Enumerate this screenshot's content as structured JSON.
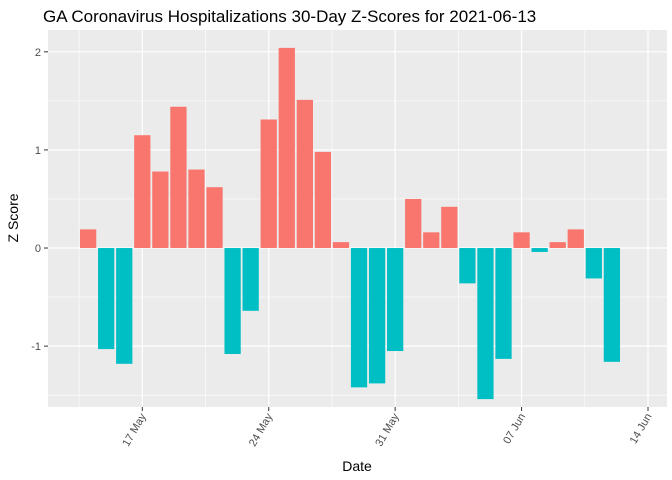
{
  "chart_data": {
    "type": "bar",
    "title": "GA Coronavirus Hospitalizations 30-Day Z-Scores for 2021-06-13",
    "xlabel": "Date",
    "ylabel": "Z Score",
    "x_type": "date",
    "xlim": [
      "2021-05-12",
      "2021-06-14"
    ],
    "ylim": [
      -1.6,
      2.1
    ],
    "grid": true,
    "legend": "none",
    "x_ticks": [
      {
        "date": "2021-05-17",
        "label": "17 May"
      },
      {
        "date": "2021-05-24",
        "label": "24 May"
      },
      {
        "date": "2021-05-31",
        "label": "31 May"
      },
      {
        "date": "2021-06-07",
        "label": "07 Jun"
      },
      {
        "date": "2021-06-14",
        "label": "14 Jun"
      }
    ],
    "y_ticks": [
      {
        "value": -1,
        "label": "-1"
      },
      {
        "value": 0,
        "label": "0"
      },
      {
        "value": 1,
        "label": "1"
      },
      {
        "value": 2,
        "label": "2"
      }
    ],
    "colors": {
      "positive": "#F8766D",
      "negative": "#00BFC4",
      "panel": "#EBEBEB",
      "grid": "#FFFFFF"
    },
    "data": [
      {
        "date": "2021-05-14",
        "value": 0.19
      },
      {
        "date": "2021-05-15",
        "value": -1.03
      },
      {
        "date": "2021-05-16",
        "value": -1.18
      },
      {
        "date": "2021-05-17",
        "value": 1.15
      },
      {
        "date": "2021-05-18",
        "value": 0.78
      },
      {
        "date": "2021-05-19",
        "value": 1.44
      },
      {
        "date": "2021-05-20",
        "value": 0.8
      },
      {
        "date": "2021-05-21",
        "value": 0.62
      },
      {
        "date": "2021-05-22",
        "value": -1.08
      },
      {
        "date": "2021-05-23",
        "value": -0.64
      },
      {
        "date": "2021-05-24",
        "value": 1.31
      },
      {
        "date": "2021-05-25",
        "value": 2.04
      },
      {
        "date": "2021-05-26",
        "value": 1.51
      },
      {
        "date": "2021-05-27",
        "value": 0.98
      },
      {
        "date": "2021-05-28",
        "value": 0.06
      },
      {
        "date": "2021-05-29",
        "value": -1.42
      },
      {
        "date": "2021-05-30",
        "value": -1.38
      },
      {
        "date": "2021-05-31",
        "value": -1.05
      },
      {
        "date": "2021-06-01",
        "value": 0.5
      },
      {
        "date": "2021-06-02",
        "value": 0.16
      },
      {
        "date": "2021-06-03",
        "value": 0.42
      },
      {
        "date": "2021-06-04",
        "value": -0.36
      },
      {
        "date": "2021-06-05",
        "value": -1.54
      },
      {
        "date": "2021-06-06",
        "value": -1.13
      },
      {
        "date": "2021-06-07",
        "value": 0.16
      },
      {
        "date": "2021-06-08",
        "value": -0.04
      },
      {
        "date": "2021-06-09",
        "value": 0.06
      },
      {
        "date": "2021-06-10",
        "value": 0.19
      },
      {
        "date": "2021-06-11",
        "value": -0.31
      },
      {
        "date": "2021-06-12",
        "value": -1.16
      }
    ]
  }
}
